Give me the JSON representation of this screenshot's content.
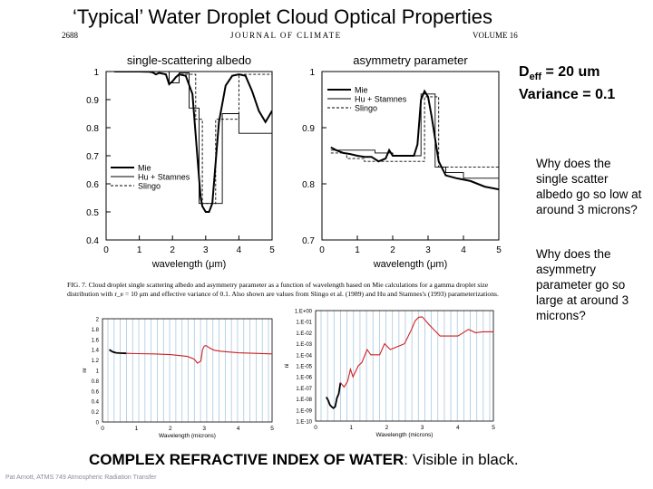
{
  "slide": {
    "title": "‘Typical’ Water Droplet Cloud Optical Properties",
    "journal_page": "2688",
    "journal_name": "JOURNAL OF CLIMATE",
    "journal_volume": "VOLUME 16",
    "params_line1_prefix": "D",
    "params_line1_sub": "eff",
    "params_line1_suffix": " = 20 um",
    "params_line2": "Variance = 0.1",
    "question1": "Why does the single scatter albedo go so low at around 3 microns?",
    "question2": "Why does the asymmetry parameter go so large at around 3 microns?",
    "figure_caption": "FIG. 7. Cloud droplet single scattering albedo and asymmetry parameter as a function of wavelength based on Mie calculations for a gamma droplet size distribution with r_e = 10 μm and effective variance of 0.1. Also shown are values from Slingo et al. (1989) and Hu and Stamnes's (1993) parameterizations.",
    "bottom_heading_bold": "COMPLEX REFRACTIVE INDEX OF WATER",
    "bottom_heading_rest": ": Visible in black.",
    "footer": "Pat Arnott, ATMS 749 Atmospheric Radiation Transfer"
  },
  "colors": {
    "line_black": "#000000",
    "line_red": "#d02020",
    "band_blue": "#a8c8e0",
    "footer_gray": "#8a8a9a"
  },
  "chart_data": [
    {
      "type": "line",
      "title": "single-scattering albedo",
      "xlabel": "wavelength (μm)",
      "ylabel": "",
      "xlim": [
        0,
        5
      ],
      "ylim": [
        0.4,
        1.0
      ],
      "xticks": [
        "0",
        "1",
        "2",
        "3",
        "4",
        "5"
      ],
      "yticks": [
        "0.4",
        "0.5",
        "0.6",
        "0.7",
        "0.8",
        "0.9",
        "1"
      ],
      "legend": "lower-left",
      "series": [
        {
          "name": "Mie",
          "style": "solid-thick",
          "x": [
            0.25,
            1.0,
            1.3,
            1.4,
            1.5,
            1.6,
            1.8,
            1.9,
            2.0,
            2.1,
            2.2,
            2.4,
            2.6,
            2.8,
            2.85,
            2.9,
            3.0,
            3.1,
            3.2,
            3.4,
            3.6,
            3.8,
            4.0,
            4.2,
            4.4,
            4.6,
            4.8,
            5.0
          ],
          "y": [
            1.0,
            1.0,
            0.999,
            0.997,
            0.99,
            0.995,
            0.99,
            0.955,
            0.965,
            0.98,
            0.99,
            0.985,
            0.92,
            0.62,
            0.55,
            0.52,
            0.5,
            0.5,
            0.53,
            0.82,
            0.95,
            0.985,
            0.99,
            0.985,
            0.93,
            0.86,
            0.82,
            0.86
          ]
        },
        {
          "name": "Hu + Stamnes",
          "style": "solid-thin",
          "xsteps": [
            0.25,
            1.9,
            2.2,
            2.5,
            2.8,
            3.5,
            4.0,
            5.0
          ],
          "ysteps": [
            1.0,
            0.96,
            0.995,
            0.87,
            0.53,
            0.85,
            0.78,
            0.78
          ]
        },
        {
          "name": "Slingo",
          "style": "dashed",
          "xsteps": [
            0.25,
            1.9,
            2.2,
            2.7,
            2.9,
            3.0,
            3.3,
            4.0,
            5.0
          ],
          "ysteps": [
            1.0,
            0.96,
            0.99,
            0.83,
            0.53,
            0.53,
            0.83,
            0.99,
            0.99
          ]
        }
      ]
    },
    {
      "type": "line",
      "title": "asymmetry parameter",
      "xlabel": "wavelength (μm)",
      "ylabel": "",
      "xlim": [
        0,
        5
      ],
      "ylim": [
        0.7,
        1.0
      ],
      "xticks": [
        "0",
        "1",
        "2",
        "3",
        "4",
        "5"
      ],
      "yticks": [
        "0.7",
        "0.8",
        "0.9",
        "1"
      ],
      "legend": "top-left",
      "series": [
        {
          "name": "Mie",
          "style": "solid-thick",
          "x": [
            0.25,
            0.4,
            0.6,
            0.8,
            1.0,
            1.2,
            1.4,
            1.6,
            1.8,
            1.9,
            2.0,
            2.2,
            2.4,
            2.6,
            2.7,
            2.8,
            2.9,
            3.0,
            3.1,
            3.2,
            3.3,
            3.5,
            3.8,
            4.2,
            4.6,
            5.0
          ],
          "y": [
            0.865,
            0.86,
            0.855,
            0.853,
            0.85,
            0.848,
            0.848,
            0.84,
            0.845,
            0.86,
            0.85,
            0.85,
            0.85,
            0.85,
            0.87,
            0.95,
            0.965,
            0.955,
            0.92,
            0.88,
            0.84,
            0.815,
            0.81,
            0.805,
            0.795,
            0.79
          ]
        },
        {
          "name": "Hu + Stamnes",
          "style": "solid-thin",
          "xsteps": [
            0.25,
            1.5,
            2.0,
            2.5,
            2.8,
            3.0,
            3.2,
            3.5,
            4.0,
            5.0
          ],
          "ysteps": [
            0.86,
            0.855,
            0.85,
            0.85,
            0.96,
            0.96,
            0.83,
            0.82,
            0.81,
            0.81
          ]
        },
        {
          "name": "Slingo",
          "style": "dashed",
          "xsteps": [
            0.25,
            0.7,
            1.2,
            1.9,
            2.5,
            2.9,
            3.3,
            4.0,
            5.0
          ],
          "ysteps": [
            0.855,
            0.845,
            0.84,
            0.84,
            0.84,
            0.955,
            0.83,
            0.83,
            0.83
          ]
        }
      ]
    },
    {
      "type": "line",
      "title": "",
      "xlabel": "Wavelength (microns)",
      "ylabel": "nr",
      "xlim": [
        0,
        5
      ],
      "ylim": [
        0,
        2
      ],
      "xticks": [
        "0",
        "1",
        "2",
        "3",
        "4",
        "5"
      ],
      "yticks": [
        "0",
        "0.2",
        "0.4",
        "0.6",
        "0.8",
        "1",
        "1.2",
        "1.4",
        "1.6",
        "1.8",
        "2"
      ],
      "series": [
        {
          "name": "",
          "color": "red",
          "x": [
            0.2,
            0.25,
            0.3,
            0.4,
            0.5,
            0.7,
            1.0,
            1.5,
            2.0,
            2.5,
            2.7,
            2.8,
            2.9,
            2.95,
            3.0,
            3.05,
            3.1,
            3.2,
            3.3,
            3.5,
            4.0,
            4.5,
            5.0
          ],
          "y": [
            1.4,
            1.38,
            1.36,
            1.34,
            1.335,
            1.33,
            1.325,
            1.32,
            1.305,
            1.27,
            1.22,
            1.14,
            1.18,
            1.4,
            1.47,
            1.48,
            1.46,
            1.42,
            1.39,
            1.37,
            1.34,
            1.33,
            1.32
          ]
        },
        {
          "name": "",
          "color": "black",
          "x": [
            0.2,
            0.3,
            0.4,
            0.5,
            0.7
          ],
          "y": [
            1.4,
            1.36,
            1.34,
            1.335,
            1.33
          ]
        }
      ]
    },
    {
      "type": "line",
      "title": "",
      "xlabel": "Wavelength (microns)",
      "ylabel": "ni",
      "xlim": [
        0,
        5
      ],
      "ylim": [
        "1.E-10",
        "1.E+00"
      ],
      "log_y": true,
      "xticks": [
        "0",
        "1",
        "2",
        "3",
        "4",
        "5"
      ],
      "yticks": [
        "1.E-10",
        "1.E-09",
        "1.E-08",
        "1.E-07",
        "1.E-06",
        "1.E-05",
        "1.E-04",
        "1.E-03",
        "1.E-02",
        "1.E-01",
        "1.E+00"
      ],
      "series": [
        {
          "name": "",
          "color": "black",
          "x": [
            0.3,
            0.35,
            0.4,
            0.45,
            0.5,
            0.55,
            0.6,
            0.65,
            0.7
          ],
          "y": [
            1.5e-08,
            8e-09,
            3e-09,
            2e-09,
            1.5e-09,
            2e-09,
            1.2e-08,
            3e-08,
            3e-07
          ]
        },
        {
          "name": "",
          "color": "red",
          "x": [
            0.7,
            0.8,
            0.9,
            0.98,
            1.05,
            1.2,
            1.3,
            1.45,
            1.55,
            1.8,
            1.94,
            2.1,
            2.5,
            2.7,
            2.8,
            2.9,
            3.0,
            3.2,
            3.5,
            4.0,
            4.3,
            4.5,
            4.7,
            5.0
          ],
          "y": [
            3e-07,
            1.2e-07,
            4e-07,
            5e-06,
            1e-06,
            1e-05,
            2e-05,
            0.0003,
            0.0001,
            0.0001,
            0.001,
            0.0003,
            0.001,
            0.02,
            0.12,
            0.25,
            0.27,
            0.05,
            0.005,
            0.005,
            0.02,
            0.01,
            0.012,
            0.012
          ]
        }
      ]
    }
  ]
}
